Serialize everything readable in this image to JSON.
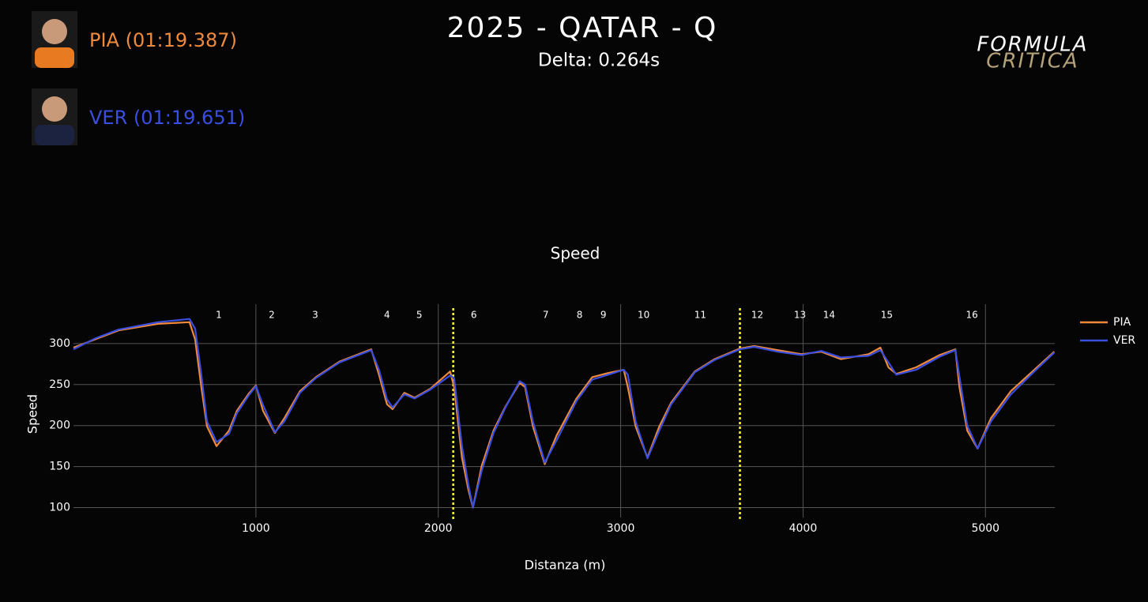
{
  "header": {
    "title": "2025 - QATAR - Q",
    "subtitle": "Delta: 0.264s",
    "logo": [
      "FORMULA",
      "CRITICA"
    ],
    "drivers": [
      {
        "label": "PIA (01:19.387)",
        "color": "#f08a3c"
      },
      {
        "label": "VER (01:19.651)",
        "color": "#3a4fe0"
      }
    ]
  },
  "chart_data": {
    "type": "line",
    "title": "Speed",
    "x_label": "Distanza (m)",
    "y_label": "Speed",
    "x": [
      0,
      117,
      247,
      463,
      636,
      667,
      701,
      732,
      784,
      853,
      896,
      961,
      1000,
      1039,
      1104,
      1156,
      1242,
      1329,
      1459,
      1632,
      1675,
      1719,
      1749,
      1814,
      1870,
      1957,
      2065,
      2087,
      2130,
      2165,
      2190,
      2238,
      2303,
      2368,
      2446,
      2476,
      2519,
      2584,
      2649,
      2758,
      2844,
      2931,
      3017,
      3039,
      3082,
      3147,
      3212,
      3277,
      3407,
      3515,
      3654,
      3732,
      3861,
      3991,
      4100,
      4208,
      4359,
      4424,
      4468,
      4511,
      4619,
      4749,
      4835,
      4857,
      4900,
      4957,
      5030,
      5139,
      5268,
      5377
    ],
    "series": [
      {
        "name": "PIA",
        "color": "#f08a3c",
        "values": [
          295,
          305,
          316,
          324,
          326,
          305,
          247,
          199,
          175,
          194,
          218,
          239,
          249,
          218,
          191,
          209,
          242,
          259,
          278,
          293,
          262,
          226,
          220,
          240,
          234,
          245,
          266,
          247,
          161,
          122,
          100,
          151,
          194,
          223,
          252,
          247,
          199,
          153,
          188,
          233,
          259,
          264,
          268,
          247,
          199,
          161,
          199,
          228,
          266,
          281,
          294,
          297,
          292,
          287,
          290,
          281,
          287,
          295,
          271,
          263,
          271,
          286,
          293,
          247,
          194,
          172,
          209,
          242,
          268,
          290
        ]
      },
      {
        "name": "VER",
        "color": "#3a4fe0",
        "values": [
          293,
          306,
          317,
          326,
          330,
          318,
          262,
          205,
          180,
          190,
          215,
          237,
          248,
          225,
          192,
          205,
          240,
          258,
          277,
          292,
          268,
          232,
          222,
          238,
          233,
          244,
          261,
          258,
          175,
          128,
          100,
          145,
          191,
          222,
          254,
          250,
          205,
          155,
          182,
          230,
          256,
          262,
          268,
          262,
          205,
          160,
          194,
          226,
          265,
          280,
          293,
          296,
          290,
          286,
          291,
          283,
          285,
          292,
          277,
          262,
          268,
          284,
          292,
          260,
          200,
          172,
          205,
          238,
          266,
          289
        ]
      }
    ],
    "xlim": [
      0,
      5380
    ],
    "ylim": [
      88,
      348
    ],
    "xticks": [
      1000,
      2000,
      3000,
      4000,
      5000
    ],
    "yticks": [
      100,
      150,
      200,
      250,
      300
    ],
    "grid": true,
    "annotations": [
      {
        "x": 797,
        "label": "1"
      },
      {
        "x": 1087,
        "label": "2"
      },
      {
        "x": 1325,
        "label": "3"
      },
      {
        "x": 1719,
        "label": "4"
      },
      {
        "x": 1896,
        "label": "5"
      },
      {
        "x": 2195,
        "label": "6"
      },
      {
        "x": 2589,
        "label": "7"
      },
      {
        "x": 2775,
        "label": "8"
      },
      {
        "x": 2905,
        "label": "9"
      },
      {
        "x": 3126,
        "label": "10"
      },
      {
        "x": 3437,
        "label": "11"
      },
      {
        "x": 3749,
        "label": "12"
      },
      {
        "x": 3983,
        "label": "13"
      },
      {
        "x": 4143,
        "label": "14"
      },
      {
        "x": 4459,
        "label": "15"
      },
      {
        "x": 4926,
        "label": "16"
      }
    ],
    "sector_lines": [
      2082,
      3654
    ],
    "sector_color": "#ffff33",
    "legend": "right"
  }
}
